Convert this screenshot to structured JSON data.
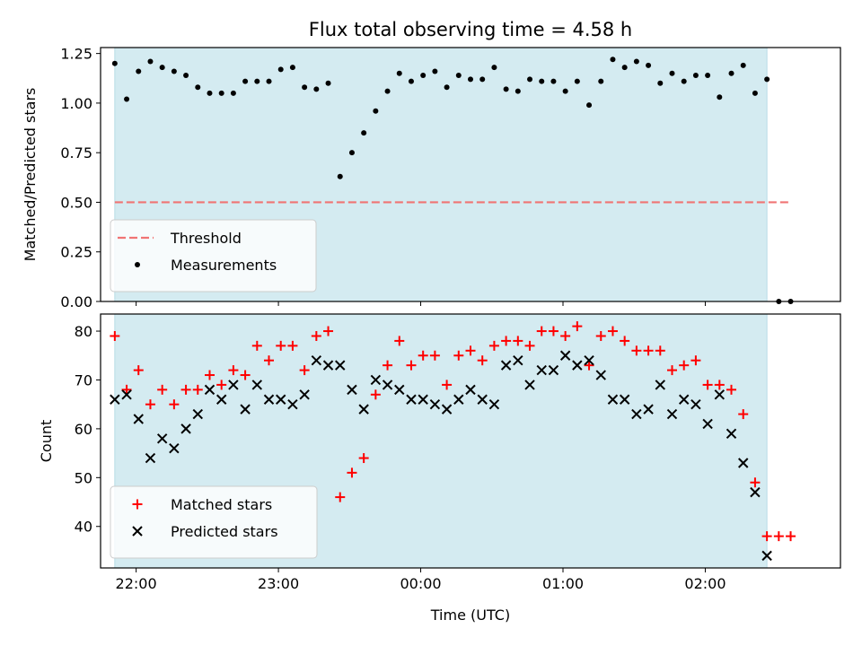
{
  "chart_data": [
    {
      "type": "scatter",
      "title": "Flux total observing time = 4.58 h",
      "xlabel": "",
      "ylabel": "Matched/Predicted stars",
      "ylim": [
        0,
        1.28
      ],
      "xlim": [
        "21:45",
        "02:57"
      ],
      "yticks": [
        "0.00",
        "0.25",
        "0.50",
        "0.75",
        "1.00",
        "1.25"
      ],
      "shaded_range": [
        "21:51",
        "02:26"
      ],
      "shade_color": "#d4ebf1",
      "legend_position": "lower-left",
      "threshold": {
        "name": "Threshold",
        "value": 0.5,
        "x_range": [
          "21:51",
          "02:36"
        ],
        "color": "#f07474"
      },
      "series": [
        {
          "name": "Measurements",
          "marker": "dot",
          "color": "#000000",
          "x": [
            "21:51",
            "21:56",
            "22:01",
            "22:06",
            "22:11",
            "22:16",
            "22:21",
            "22:26",
            "22:31",
            "22:36",
            "22:41",
            "22:46",
            "22:51",
            "22:56",
            "23:01",
            "23:06",
            "23:11",
            "23:16",
            "23:21",
            "23:26",
            "23:31",
            "23:36",
            "23:41",
            "23:46",
            "23:51",
            "23:56",
            "00:01",
            "00:06",
            "00:11",
            "00:16",
            "00:21",
            "00:26",
            "00:31",
            "00:36",
            "00:41",
            "00:46",
            "00:51",
            "00:56",
            "01:01",
            "01:06",
            "01:11",
            "01:16",
            "01:21",
            "01:26",
            "01:31",
            "01:36",
            "01:41",
            "01:46",
            "01:51",
            "01:56",
            "02:01",
            "02:06",
            "02:11",
            "02:16",
            "02:21",
            "02:26",
            "02:31",
            "02:36"
          ],
          "y": [
            1.2,
            1.02,
            1.16,
            1.21,
            1.18,
            1.16,
            1.14,
            1.08,
            1.05,
            1.05,
            1.05,
            1.11,
            1.11,
            1.11,
            1.17,
            1.18,
            1.08,
            1.07,
            1.1,
            0.63,
            0.75,
            0.85,
            0.96,
            1.06,
            1.15,
            1.11,
            1.14,
            1.16,
            1.08,
            1.14,
            1.12,
            1.12,
            1.18,
            1.07,
            1.06,
            1.12,
            1.11,
            1.11,
            1.06,
            1.11,
            0.99,
            1.11,
            1.22,
            1.18,
            1.21,
            1.19,
            1.1,
            1.15,
            1.11,
            1.14,
            1.14,
            1.03,
            1.15,
            1.19,
            1.05,
            1.12,
            0.0,
            0.0
          ]
        }
      ]
    },
    {
      "type": "scatter",
      "title": "",
      "xlabel": "Time (UTC)",
      "ylabel": "Count",
      "ylim": [
        31.5,
        83.5
      ],
      "xlim": [
        "21:45",
        "02:57"
      ],
      "yticks": [
        "40",
        "50",
        "60",
        "70",
        "80"
      ],
      "xticks": [
        "22:00",
        "23:00",
        "00:00",
        "01:00",
        "02:00"
      ],
      "shaded_range": [
        "21:51",
        "02:26"
      ],
      "legend_position": "lower-left",
      "series": [
        {
          "name": "Matched stars",
          "marker": "plus",
          "color": "#ff0000",
          "x": [
            "21:51",
            "21:56",
            "22:01",
            "22:06",
            "22:11",
            "22:16",
            "22:21",
            "22:26",
            "22:31",
            "22:36",
            "22:41",
            "22:46",
            "22:51",
            "22:56",
            "23:01",
            "23:06",
            "23:11",
            "23:16",
            "23:21",
            "23:26",
            "23:31",
            "23:36",
            "23:41",
            "23:46",
            "23:51",
            "23:56",
            "00:01",
            "00:06",
            "00:11",
            "00:16",
            "00:21",
            "00:26",
            "00:31",
            "00:36",
            "00:41",
            "00:46",
            "00:51",
            "00:56",
            "01:01",
            "01:06",
            "01:11",
            "01:16",
            "01:21",
            "01:26",
            "01:31",
            "01:36",
            "01:41",
            "01:46",
            "01:51",
            "01:56",
            "02:01",
            "02:06",
            "02:11",
            "02:16",
            "02:21",
            "02:26",
            "02:31",
            "02:36"
          ],
          "y": [
            79,
            68,
            72,
            65,
            68,
            65,
            68,
            68,
            71,
            69,
            72,
            71,
            77,
            74,
            77,
            77,
            72,
            79,
            80,
            46,
            51,
            54,
            67,
            73,
            78,
            73,
            75,
            75,
            69,
            75,
            76,
            74,
            77,
            78,
            78,
            77,
            80,
            80,
            79,
            81,
            73,
            79,
            80,
            78,
            76,
            76,
            76,
            72,
            73,
            74,
            69,
            69,
            68,
            63,
            49,
            38,
            38,
            38
          ]
        },
        {
          "name": "Predicted stars",
          "marker": "x",
          "color": "#000000",
          "x": [
            "21:51",
            "21:56",
            "22:01",
            "22:06",
            "22:11",
            "22:16",
            "22:21",
            "22:26",
            "22:31",
            "22:36",
            "22:41",
            "22:46",
            "22:51",
            "22:56",
            "23:01",
            "23:06",
            "23:11",
            "23:16",
            "23:21",
            "23:26",
            "23:31",
            "23:36",
            "23:41",
            "23:46",
            "23:51",
            "23:56",
            "00:01",
            "00:06",
            "00:11",
            "00:16",
            "00:21",
            "00:26",
            "00:31",
            "00:36",
            "00:41",
            "00:46",
            "00:51",
            "00:56",
            "01:01",
            "01:06",
            "01:11",
            "01:16",
            "01:21",
            "01:26",
            "01:31",
            "01:36",
            "01:41",
            "01:46",
            "01:51",
            "01:56",
            "02:01",
            "02:06",
            "02:11",
            "02:16",
            "02:21",
            "02:26"
          ],
          "y": [
            66,
            67,
            62,
            54,
            58,
            56,
            60,
            63,
            68,
            66,
            69,
            64,
            69,
            66,
            66,
            65,
            67,
            74,
            73,
            73,
            68,
            64,
            70,
            69,
            68,
            66,
            66,
            65,
            64,
            66,
            68,
            66,
            65,
            73,
            74,
            69,
            72,
            72,
            75,
            73,
            74,
            71,
            66,
            66,
            63,
            64,
            69,
            63,
            66,
            65,
            61,
            67,
            59,
            53,
            47,
            34
          ]
        }
      ]
    }
  ]
}
